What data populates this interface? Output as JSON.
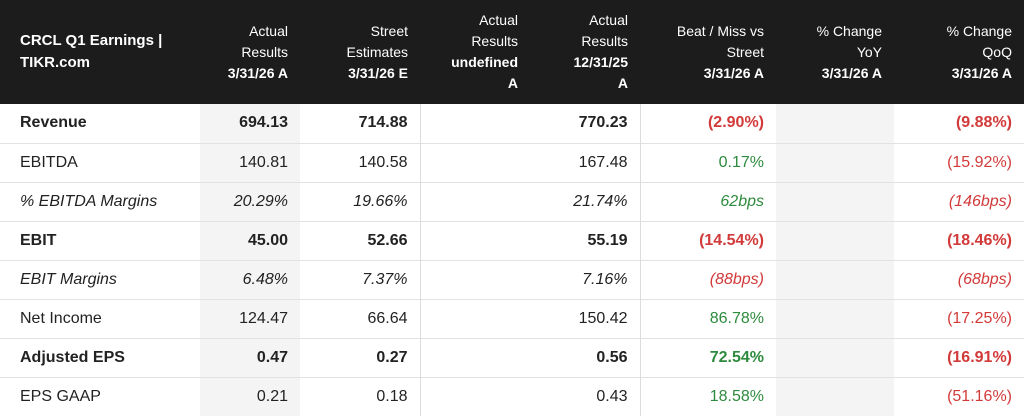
{
  "header": {
    "title_line1": "CRCL Q1 Earnings |",
    "title_line2": "TIKR.com",
    "columns": [
      {
        "l1": "Actual",
        "l2": "Results",
        "l3": "3/31/26 A"
      },
      {
        "l1": "Street",
        "l2": "Estimates",
        "l3": "3/31/26 E"
      },
      {
        "l1": "Actual",
        "l2": "Results",
        "l3": "undefined",
        "l4": "A"
      },
      {
        "l1": "Actual",
        "l2": "Results",
        "l3": "12/31/25",
        "l4": "A"
      },
      {
        "l1": "Beat / Miss vs",
        "l2": "Street",
        "l3": "3/31/26 A"
      },
      {
        "l1": "% Change",
        "l2": "YoY",
        "l3": "3/31/26 A"
      },
      {
        "l1": "% Change",
        "l2": "QoQ",
        "l3": "3/31/26 A"
      }
    ]
  },
  "rows": [
    {
      "label": "Revenue",
      "actual": "694.13",
      "estimate": "714.88",
      "undef": "",
      "prior": "770.23",
      "beat": "(2.90%)",
      "yoy": "",
      "qoq": "(9.88%)"
    },
    {
      "label": "EBITDA",
      "actual": "140.81",
      "estimate": "140.58",
      "undef": "",
      "prior": "167.48",
      "beat": "0.17%",
      "yoy": "",
      "qoq": "(15.92%)"
    },
    {
      "label": "% EBITDA Margins",
      "actual": "20.29%",
      "estimate": "19.66%",
      "undef": "",
      "prior": "21.74%",
      "beat": "62bps",
      "yoy": "",
      "qoq": "(146bps)"
    },
    {
      "label": "EBIT",
      "actual": "45.00",
      "estimate": "52.66",
      "undef": "",
      "prior": "55.19",
      "beat": "(14.54%)",
      "yoy": "",
      "qoq": "(18.46%)"
    },
    {
      "label": "EBIT Margins",
      "actual": "6.48%",
      "estimate": "7.37%",
      "undef": "",
      "prior": "7.16%",
      "beat": "(88bps)",
      "yoy": "",
      "qoq": "(68bps)"
    },
    {
      "label": "Net Income",
      "actual": "124.47",
      "estimate": "66.64",
      "undef": "",
      "prior": "150.42",
      "beat": "86.78%",
      "yoy": "",
      "qoq": "(17.25%)"
    },
    {
      "label": "Adjusted EPS",
      "actual": "0.47",
      "estimate": "0.27",
      "undef": "",
      "prior": "0.56",
      "beat": "72.54%",
      "yoy": "",
      "qoq": "(16.91%)"
    },
    {
      "label": "EPS GAAP",
      "actual": "0.21",
      "estimate": "0.18",
      "undef": "",
      "prior": "0.43",
      "beat": "18.58%",
      "yoy": "",
      "qoq": "(51.16%)"
    }
  ],
  "colors": {
    "positive": "#2e8b3e",
    "negative": "#d23a3a",
    "header_bg": "#1c1c1c",
    "shade": "#f4f4f4"
  }
}
